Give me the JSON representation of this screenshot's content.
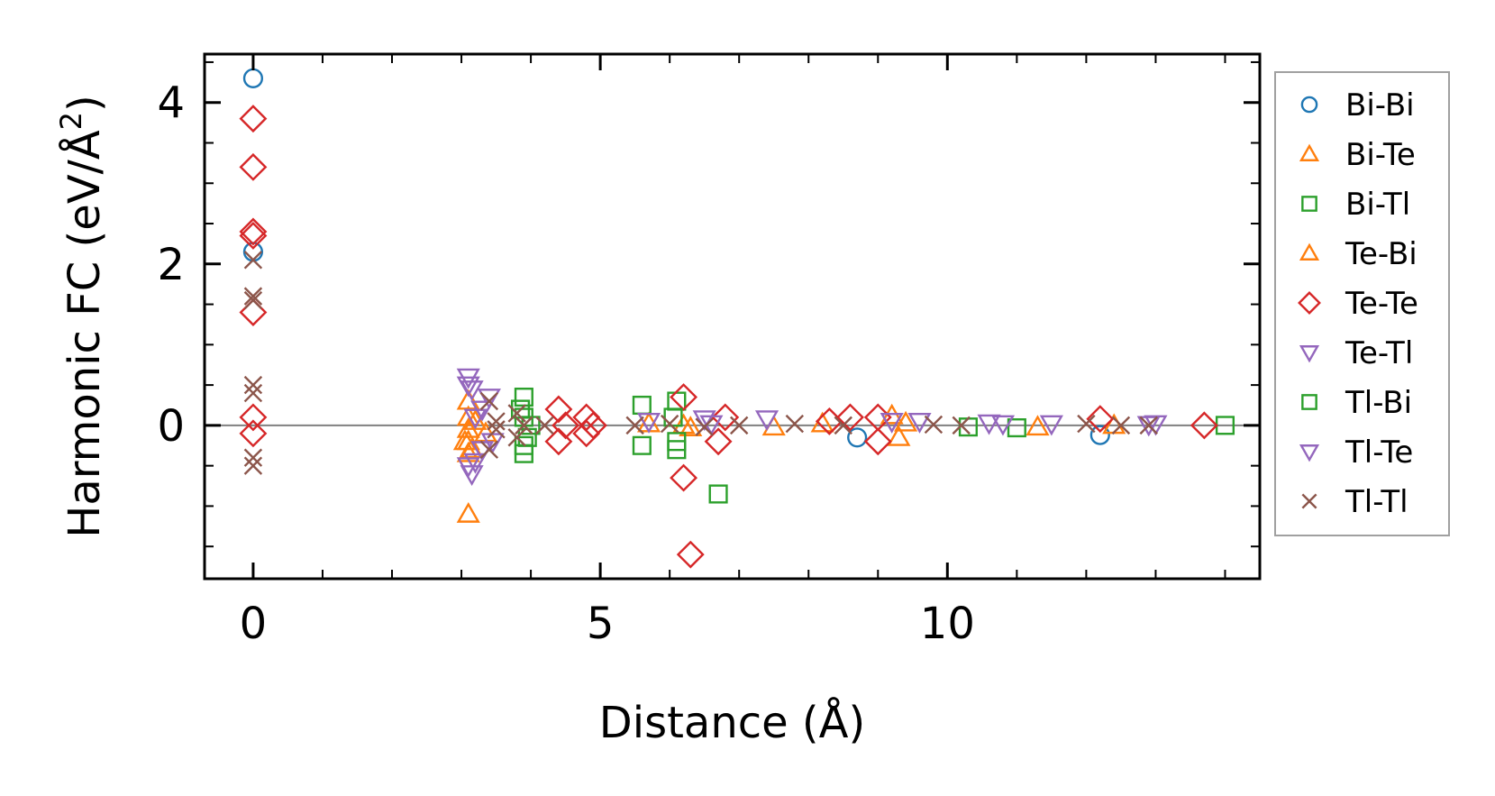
{
  "chart_data": {
    "type": "scatter",
    "xlabel": "Distance (Å)",
    "ylabel_main": "Harmonic FC (eV/Å",
    "ylabel_sup": "2",
    "ylabel_end": ")",
    "xlim": [
      -0.7,
      14.5
    ],
    "ylim": [
      -1.9,
      4.6
    ],
    "xticks": [
      0,
      5,
      10
    ],
    "xtick_labels": [
      "0",
      "5",
      "10"
    ],
    "yticks": [
      0,
      2,
      4
    ],
    "ytick_labels": [
      "0",
      "2",
      "4"
    ],
    "x_minor_step": 1,
    "y_minor_step": 0.5,
    "zero_line": true,
    "grid": false,
    "legend_position": "outside-right",
    "series": [
      {
        "name": "Bi-Bi",
        "marker": "circle",
        "color": "#1f77b4",
        "points": [
          [
            0,
            4.3
          ],
          [
            0,
            2.15
          ],
          [
            8.7,
            -0.15
          ],
          [
            12.2,
            -0.12
          ]
        ]
      },
      {
        "name": "Bi-Te",
        "marker": "triangle-up",
        "color": "#ff7f0e",
        "points": [
          [
            3.1,
            0.3
          ],
          [
            3.1,
            -0.05
          ],
          [
            3.1,
            -0.2
          ],
          [
            3.1,
            -0.35
          ],
          [
            3.1,
            -1.1
          ],
          [
            3.2,
            0.05
          ],
          [
            3.35,
            -0.1
          ],
          [
            5.7,
            0.02
          ],
          [
            6.3,
            -0.03
          ],
          [
            7.5,
            -0.02
          ],
          [
            9.2,
            0.12
          ],
          [
            9.3,
            -0.15
          ],
          [
            11.3,
            -0.02
          ],
          [
            12.4,
            0.0
          ]
        ]
      },
      {
        "name": "Bi-Tl",
        "marker": "square",
        "color": "#2ca02c",
        "points": [
          [
            3.9,
            0.35
          ],
          [
            3.9,
            0.1
          ],
          [
            3.95,
            -0.15
          ],
          [
            3.9,
            -0.35
          ],
          [
            5.6,
            0.25
          ],
          [
            5.6,
            -0.25
          ],
          [
            6.1,
            0.3
          ],
          [
            6.1,
            -0.3
          ],
          [
            6.7,
            -0.85
          ],
          [
            14,
            0.0
          ]
        ]
      },
      {
        "name": "Te-Bi",
        "marker": "triangle-up",
        "color": "#ff7f0e",
        "points": [
          [
            3.05,
            -0.2
          ],
          [
            3.1,
            0.1
          ],
          [
            3.15,
            -0.3
          ],
          [
            6.2,
            0.0
          ],
          [
            8.2,
            0.02
          ],
          [
            9.4,
            0.03
          ]
        ]
      },
      {
        "name": "Te-Te",
        "marker": "diamond",
        "color": "#d62728",
        "points": [
          [
            0,
            3.8
          ],
          [
            0,
            3.2
          ],
          [
            0,
            2.4
          ],
          [
            0,
            2.35
          ],
          [
            0,
            1.4
          ],
          [
            0,
            0.1
          ],
          [
            0,
            -0.1
          ],
          [
            4.4,
            0.2
          ],
          [
            4.4,
            -0.2
          ],
          [
            4.5,
            0.0
          ],
          [
            4.8,
            0.1
          ],
          [
            4.8,
            -0.1
          ],
          [
            4.9,
            0.0
          ],
          [
            6.2,
            0.35
          ],
          [
            6.2,
            -0.65
          ],
          [
            6.3,
            -1.6
          ],
          [
            6.7,
            -0.2
          ],
          [
            6.8,
            0.1
          ],
          [
            8.3,
            0.05
          ],
          [
            8.6,
            0.1
          ],
          [
            9.0,
            -0.2
          ],
          [
            9.0,
            0.1
          ],
          [
            12.2,
            0.08
          ],
          [
            13.7,
            0.0
          ]
        ]
      },
      {
        "name": "Te-Tl",
        "marker": "triangle-down",
        "color": "#9467bd",
        "points": [
          [
            3.1,
            0.6
          ],
          [
            3.1,
            0.5
          ],
          [
            3.1,
            -0.5
          ],
          [
            3.15,
            -0.6
          ],
          [
            3.2,
            0.1
          ],
          [
            3.3,
            -0.3
          ],
          [
            3.4,
            0.35
          ],
          [
            6.5,
            0.08
          ],
          [
            7.4,
            0.08
          ],
          [
            9.2,
            0.05
          ],
          [
            10.6,
            0.03
          ],
          [
            11.5,
            0.02
          ],
          [
            13.0,
            0.02
          ]
        ]
      },
      {
        "name": "Tl-Bi",
        "marker": "square",
        "color": "#2ca02c",
        "points": [
          [
            3.85,
            0.2
          ],
          [
            3.9,
            -0.25
          ],
          [
            4.0,
            0.0
          ],
          [
            6.05,
            0.1
          ],
          [
            6.1,
            -0.2
          ],
          [
            10.3,
            -0.02
          ],
          [
            11.0,
            -0.03
          ]
        ]
      },
      {
        "name": "Tl-Te",
        "marker": "triangle-down",
        "color": "#9467bd",
        "points": [
          [
            3.15,
            0.45
          ],
          [
            3.2,
            -0.45
          ],
          [
            3.3,
            0.2
          ],
          [
            3.45,
            -0.2
          ],
          [
            5.7,
            0.05
          ],
          [
            6.6,
            0.02
          ],
          [
            9.6,
            0.05
          ],
          [
            10.8,
            0.02
          ],
          [
            12.9,
            0.01
          ]
        ]
      },
      {
        "name": "Tl-Tl",
        "marker": "x",
        "color": "#8c564b",
        "points": [
          [
            0,
            2.05
          ],
          [
            0,
            1.6
          ],
          [
            0,
            1.55
          ],
          [
            0,
            0.5
          ],
          [
            0,
            0.4
          ],
          [
            0,
            -0.4
          ],
          [
            0,
            -0.5
          ],
          [
            3.4,
            0.3
          ],
          [
            3.4,
            -0.3
          ],
          [
            3.5,
            0.05
          ],
          [
            3.5,
            -0.05
          ],
          [
            3.8,
            0.15
          ],
          [
            3.8,
            -0.15
          ],
          [
            3.9,
            0.0
          ],
          [
            4.2,
            0.0
          ],
          [
            5.5,
            0.0
          ],
          [
            6.0,
            0.02
          ],
          [
            6.5,
            -0.02
          ],
          [
            7.0,
            0.0
          ],
          [
            7.8,
            0.02
          ],
          [
            8.5,
            0.0
          ],
          [
            9.8,
            0.01
          ],
          [
            10.2,
            0.0
          ],
          [
            12.0,
            0.02
          ],
          [
            12.5,
            0.0
          ],
          [
            12.9,
            0.0
          ]
        ]
      }
    ]
  }
}
